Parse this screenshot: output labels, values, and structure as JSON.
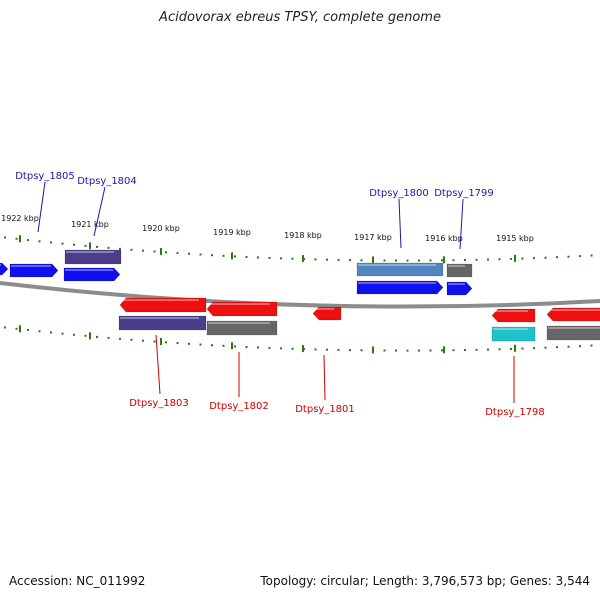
{
  "title": "Acidovorax ebreus TPSY, complete genome",
  "footer": {
    "accession": "Accession: NC_011992",
    "summary": "Topology: circular; Length: 3,796,573 bp; Genes: 3,544"
  },
  "scale_ticks": [
    {
      "label": "1922 kbp",
      "kbp": 1922
    },
    {
      "label": "1921 kbp",
      "kbp": 1921
    },
    {
      "label": "1920 kbp",
      "kbp": 1920
    },
    {
      "label": "1919 kbp",
      "kbp": 1919
    },
    {
      "label": "1918 kbp",
      "kbp": 1918
    },
    {
      "label": "1917 kbp",
      "kbp": 1917
    },
    {
      "label": "1916 kbp",
      "kbp": 1916
    },
    {
      "label": "1915 kbp",
      "kbp": 1915
    }
  ],
  "gene_labels": [
    {
      "name": "Dtpsy_1805",
      "strand": "forward"
    },
    {
      "name": "Dtpsy_1804",
      "strand": "forward"
    },
    {
      "name": "Dtpsy_1800",
      "strand": "forward"
    },
    {
      "name": "Dtpsy_1799",
      "strand": "forward"
    },
    {
      "name": "Dtpsy_1803",
      "strand": "reverse"
    },
    {
      "name": "Dtpsy_1802",
      "strand": "reverse"
    },
    {
      "name": "Dtpsy_1801",
      "strand": "reverse"
    },
    {
      "name": "Dtpsy_1798",
      "strand": "reverse"
    }
  ],
  "colors": {
    "forward_gene": "#1010ee",
    "reverse_gene": "#ee1010",
    "forward_label": "#1a1aa8",
    "reverse_label": "#cc0000",
    "cog_purple": "#4a3e8a",
    "cog_gray": "#666666",
    "cog_steelblue": "#4f86c0",
    "cog_cyan": "#20c0cc",
    "backbone": "#8c8c8c",
    "tick": "#2a7a10"
  }
}
